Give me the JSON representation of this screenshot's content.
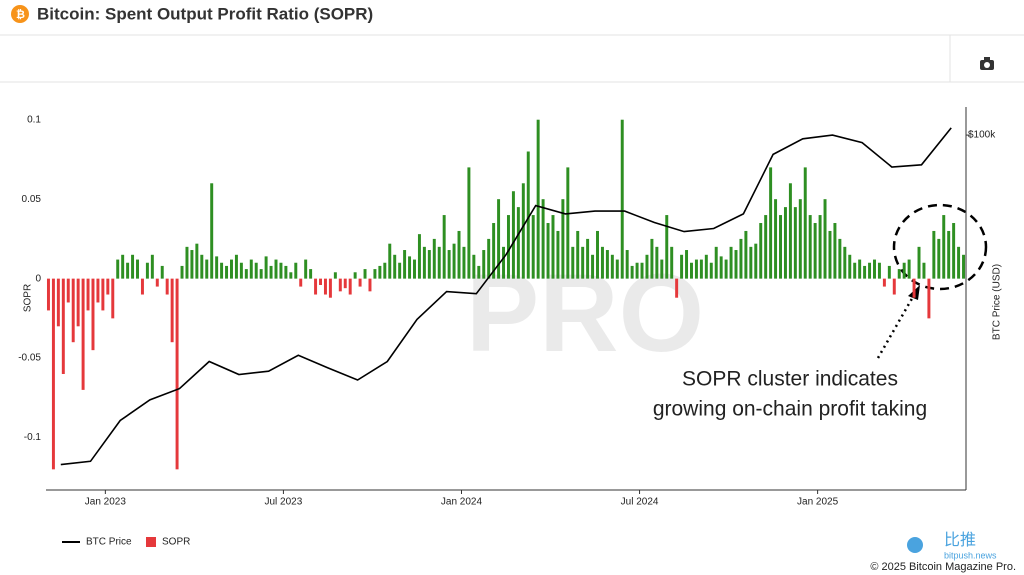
{
  "header": {
    "title": "Bitcoin: Spent Output Profit Ratio (SOPR)"
  },
  "chart_data": {
    "type": "combo",
    "y_label": "SOPR",
    "y2_label": "BTC Price (USD)",
    "watermark": "PRO",
    "annotation": [
      "SOPR cluster indicates",
      "growing on-chain profit taking"
    ],
    "x": [
      "2022-11",
      "2022-12",
      "2023-01",
      "2023-02",
      "2023-03",
      "2023-04",
      "2023-05",
      "2023-06",
      "2023-07",
      "2023-08",
      "2023-09",
      "2023-10",
      "2023-11",
      "2023-12",
      "2024-01",
      "2024-02",
      "2024-03",
      "2024-04",
      "2024-05",
      "2024-06",
      "2024-07",
      "2024-08",
      "2024-09",
      "2024-10",
      "2024-11",
      "2024-12",
      "2025-01",
      "2025-02",
      "2025-03",
      "2025-04",
      "2025-05"
    ],
    "xlim": [
      "2022-11",
      "2025-06"
    ],
    "xticks": [
      {
        "value": "2023-01",
        "label": "Jan 2023"
      },
      {
        "value": "2023-07",
        "label": "Jul 2023"
      },
      {
        "value": "2024-01",
        "label": "Jan 2024"
      },
      {
        "value": "2024-07",
        "label": "Jul 2024"
      },
      {
        "value": "2025-01",
        "label": "Jan 2025"
      }
    ],
    "ylim": [
      -0.133,
      0.108
    ],
    "yticks": [
      0.1,
      0.05,
      0,
      -0.05,
      -0.1
    ],
    "y2lim": [
      14360,
      116600
    ],
    "y2_log": true,
    "y2ticks": [
      {
        "value": 100000,
        "label": "$100k"
      }
    ],
    "grid": false,
    "series": [
      {
        "name": "BTC Price",
        "type": "line",
        "axis": "y2",
        "color": "#000000",
        "values": [
          16500,
          16800,
          21000,
          23500,
          25000,
          29000,
          27000,
          27500,
          30000,
          28000,
          26200,
          29000,
          36500,
          42500,
          42000,
          52000,
          68000,
          65000,
          66000,
          66000,
          62000,
          59000,
          60000,
          65000,
          90000,
          98000,
          100000,
          96000,
          84000,
          85000,
          104000
        ]
      },
      {
        "name": "SOPR",
        "type": "bar",
        "color": "#e5383b",
        "positive_color": "#2e8f22",
        "values": [
          [
            -0.02,
            -0.12,
            -0.03,
            -0.06,
            -0.015,
            -0.04
          ],
          [
            -0.03,
            -0.07,
            -0.02,
            -0.045,
            -0.015,
            -0.02
          ],
          [
            -0.01,
            -0.025,
            0.012,
            0.015,
            0.01,
            0.015
          ],
          [
            0.012,
            -0.01,
            0.01,
            0.015,
            -0.005,
            0.008
          ],
          [
            -0.01,
            -0.04,
            -0.12,
            0.008,
            0.02,
            0.018
          ],
          [
            0.022,
            0.015,
            0.012,
            0.06,
            0.014,
            0.01
          ],
          [
            0.008,
            0.012,
            0.015,
            0.01,
            0.006,
            0.012
          ],
          [
            0.01,
            0.006,
            0.014,
            0.008,
            0.012,
            0.01
          ],
          [
            0.008,
            0.004,
            0.01,
            -0.005,
            0.012,
            0.006
          ],
          [
            -0.01,
            -0.004,
            -0.01,
            -0.012,
            0.004,
            -0.008
          ],
          [
            -0.006,
            -0.01,
            0.004,
            -0.005,
            0.006,
            -0.008
          ],
          [
            0.006,
            0.008,
            0.01,
            0.022,
            0.015,
            0.01
          ],
          [
            0.018,
            0.014,
            0.012,
            0.028,
            0.02,
            0.018
          ],
          [
            0.025,
            0.02,
            0.04,
            0.018,
            0.022,
            0.03
          ],
          [
            0.02,
            0.07,
            0.015,
            0.008,
            0.018,
            0.025
          ],
          [
            0.035,
            0.05,
            0.02,
            0.04,
            0.055,
            0.045
          ],
          [
            0.06,
            0.08,
            0.04,
            0.1,
            0.05,
            0.035
          ],
          [
            0.04,
            0.03,
            0.05,
            0.07,
            0.02,
            0.03
          ],
          [
            0.02,
            0.025,
            0.015,
            0.03,
            0.02,
            0.018
          ],
          [
            0.015,
            0.012,
            0.1,
            0.018,
            0.008,
            0.01
          ],
          [
            0.01,
            0.015,
            0.025,
            0.02,
            0.012,
            0.04
          ],
          [
            0.02,
            -0.012,
            0.015,
            0.018,
            0.01,
            0.012
          ],
          [
            0.012,
            0.015,
            0.01,
            0.02,
            0.014,
            0.012
          ],
          [
            0.02,
            0.018,
            0.025,
            0.03,
            0.02,
            0.022
          ],
          [
            0.035,
            0.04,
            0.07,
            0.05,
            0.04,
            0.045
          ],
          [
            0.06,
            0.045,
            0.05,
            0.07,
            0.04,
            0.035
          ],
          [
            0.04,
            0.05,
            0.03,
            0.035,
            0.025,
            0.02
          ],
          [
            0.015,
            0.01,
            0.012,
            0.008,
            0.01,
            0.012
          ],
          [
            0.01,
            -0.005,
            0.008,
            -0.01,
            0.006,
            0.01
          ],
          [
            0.012,
            -0.012,
            0.02,
            0.01,
            -0.025,
            0.03
          ],
          [
            0.025,
            0.04,
            0.03,
            0.035,
            0.02,
            0.015
          ]
        ]
      }
    ]
  },
  "footer": {
    "copyright": "© 2025 Bitcoin Magazine Pro.",
    "brand": "比推",
    "site": "bitpush.news"
  }
}
